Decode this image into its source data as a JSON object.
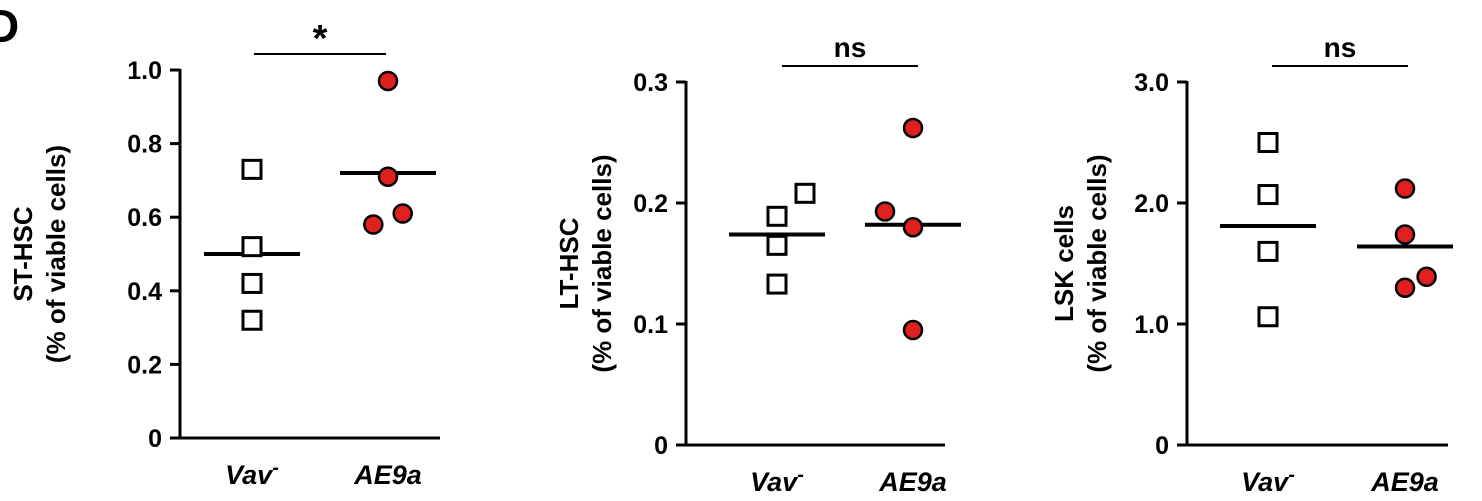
{
  "panel_label": "D",
  "chart_data": [
    {
      "type": "scatter",
      "ylabel_line1": "ST-HSC",
      "ylabel_line2": "(% of viable cells)",
      "categories": [
        "Vav",
        "AE9a"
      ],
      "category_superscripts": [
        "-",
        ""
      ],
      "ylim": [
        0,
        1.0
      ],
      "yticks": [
        0,
        0.2,
        0.4,
        0.6,
        0.8,
        1.0
      ],
      "ytick_labels": [
        "0",
        "0.2",
        "0.4",
        "0.6",
        "0.8",
        "1.0"
      ],
      "series": [
        {
          "category": "Vav",
          "marker": "open-square",
          "values": [
            0.73,
            0.52,
            0.42,
            0.32
          ],
          "jitter": [
            0,
            0,
            0,
            0
          ],
          "mean": 0.5
        },
        {
          "category": "AE9a",
          "marker": "red-circle",
          "values": [
            0.97,
            0.71,
            0.61,
            0.58
          ],
          "jitter": [
            0,
            0,
            0.7,
            -0.7
          ],
          "mean": 0.72
        }
      ],
      "significance": "*"
    },
    {
      "type": "scatter",
      "ylabel_line1": "LT-HSC",
      "ylabel_line2": "(% of viable cells)",
      "categories": [
        "Vav",
        "AE9a"
      ],
      "category_superscripts": [
        "-",
        ""
      ],
      "ylim": [
        0,
        0.3
      ],
      "yticks": [
        0,
        0.1,
        0.2,
        0.3
      ],
      "ytick_labels": [
        "0",
        "0.1",
        "0.2",
        "0.3"
      ],
      "series": [
        {
          "category": "Vav",
          "marker": "open-square",
          "values": [
            0.208,
            0.189,
            0.165,
            0.133
          ],
          "jitter": [
            1,
            0,
            0,
            0
          ],
          "mean": 0.174
        },
        {
          "category": "AE9a",
          "marker": "red-circle",
          "values": [
            0.262,
            0.193,
            0.18,
            0.095
          ],
          "jitter": [
            0,
            -1,
            0,
            0
          ],
          "mean": 0.182
        }
      ],
      "significance": "ns"
    },
    {
      "type": "scatter",
      "ylabel_line1": "LSK cells",
      "ylabel_line2": "(% of viable cells)",
      "categories": [
        "Vav",
        "AE9a"
      ],
      "category_superscripts": [
        "-",
        ""
      ],
      "ylim": [
        0,
        3.0
      ],
      "yticks": [
        0,
        1.0,
        2.0,
        3.0
      ],
      "ytick_labels": [
        "0",
        "1.0",
        "2.0",
        "3.0"
      ],
      "series": [
        {
          "category": "Vav",
          "marker": "open-square",
          "values": [
            2.5,
            2.07,
            1.6,
            1.06
          ],
          "jitter": [
            0,
            0,
            0,
            0
          ],
          "mean": 1.81
        },
        {
          "category": "AE9a",
          "marker": "red-circle",
          "values": [
            2.12,
            1.74,
            1.39,
            1.3
          ],
          "jitter": [
            0,
            0,
            0.8,
            0
          ],
          "mean": 1.64
        }
      ],
      "significance": "ns"
    }
  ]
}
